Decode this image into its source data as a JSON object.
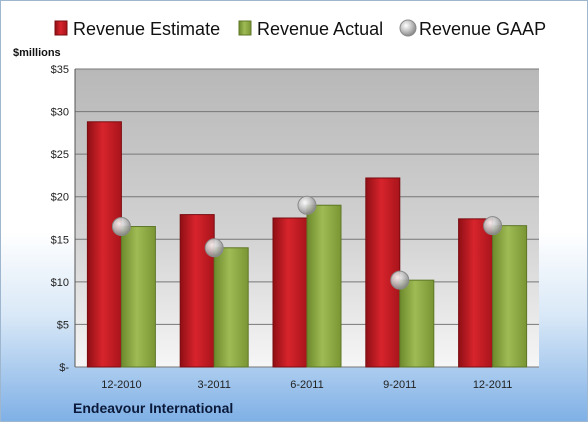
{
  "chart_data": {
    "type": "bar",
    "title": "",
    "ylabel": "$millions",
    "company": "Endeavour International",
    "categories": [
      "12-2010",
      "3-2011",
      "6-2011",
      "9-2011",
      "12-2011"
    ],
    "ylim": [
      0,
      35
    ],
    "yticks": [
      0,
      5,
      10,
      15,
      20,
      25,
      30,
      35
    ],
    "ytick_labels": [
      "$-",
      "$5",
      "$10",
      "$15",
      "$20",
      "$25",
      "$30",
      "$35"
    ],
    "grid": true,
    "legend_position": "top",
    "series": [
      {
        "name": "Revenue Estimate",
        "kind": "bar",
        "color": "#c0171f",
        "values": [
          28.8,
          17.9,
          17.5,
          22.2,
          17.4
        ]
      },
      {
        "name": "Revenue Actual",
        "kind": "bar",
        "color": "#8aa53f",
        "values": [
          16.5,
          14.0,
          19.0,
          10.2,
          16.6
        ]
      },
      {
        "name": "Revenue GAAP",
        "kind": "marker",
        "color": "#b9b9b9",
        "values": [
          16.5,
          14.0,
          19.0,
          10.2,
          16.6
        ]
      }
    ]
  }
}
